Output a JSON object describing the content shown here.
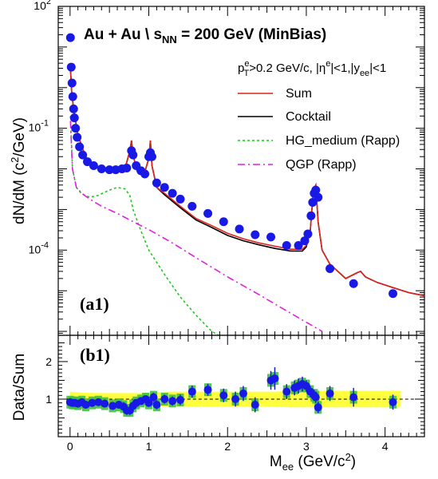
{
  "chart_data": [
    {
      "type": "line",
      "panel": "(a1)",
      "title": "Au + Au  \\ s_NN = 200 GeV (MinBias)",
      "title_parts": {
        "prefix": "Au + Au  \\ s",
        "sub": "NN",
        "suffix": " = 200 GeV (MinBias)"
      },
      "cuts": "p_T^e>0.2 GeV/c, |η^e|<1,|y_ee|<1",
      "cuts_parts": {
        "p": "p",
        "sup_e": "e",
        "sub_T": "T",
        "mid": ">0.2 GeV/c, |η",
        "sup_e2": "e",
        "mid2": "|<1,|y",
        "sub_ee": "ee",
        "end": "|<1"
      },
      "ylabel": "dN/dM (c²/GeV)",
      "ylabel_parts": {
        "a": "dN/dM (c",
        "sup": "2",
        "b": "/GeV)"
      },
      "yscale": "log",
      "ylim": [
        8e-07,
        100
      ],
      "xlim": [
        -0.15,
        4.5
      ],
      "y_ticks": [
        {
          "value": 100,
          "label": "10",
          "exp": "2"
        },
        {
          "value": 0.1,
          "label": "10",
          "exp": "-1"
        },
        {
          "value": 0.0001,
          "label": "10",
          "exp": "-4"
        }
      ],
      "legend_placement": "top-right",
      "series": [
        {
          "name": "Sum",
          "color": "#e0201b",
          "dash": "solid",
          "x": [
            0.005,
            0.02,
            0.05,
            0.1,
            0.15,
            0.2,
            0.3,
            0.4,
            0.5,
            0.6,
            0.7,
            0.76,
            0.78,
            0.8,
            0.85,
            0.9,
            0.95,
            1.0,
            1.02,
            1.04,
            1.1,
            1.2,
            1.4,
            1.6,
            1.8,
            2.0,
            2.2,
            2.4,
            2.6,
            2.8,
            2.95,
            3.0,
            3.05,
            3.09,
            3.12,
            3.15,
            3.2,
            3.3,
            3.5,
            3.65,
            3.69,
            3.75,
            3.9,
            4.1,
            4.3,
            4.5
          ],
          "y": [
            3.0,
            0.8,
            0.25,
            0.07,
            0.035,
            0.02,
            0.012,
            0.0095,
            0.0085,
            0.0088,
            0.0105,
            0.028,
            0.05,
            0.022,
            0.009,
            0.0075,
            0.0085,
            0.018,
            0.05,
            0.012,
            0.0035,
            0.0025,
            0.0012,
            0.0006,
            0.0004,
            0.00026,
            0.00019,
            0.00015,
            0.000125,
            0.000105,
            0.000105,
            0.00013,
            0.0003,
            0.003,
            0.004,
            0.0005,
            0.0001,
            4.5e-05,
            2e-05,
            2.8e-05,
            3e-05,
            2.2e-05,
            1.6e-05,
            1.2e-05,
            9e-06,
            7.5e-06
          ]
        },
        {
          "name": "Cocktail",
          "color": "#000000",
          "dash": "solid",
          "x": [
            0.005,
            0.02,
            0.05,
            0.1,
            0.15,
            0.2,
            0.3,
            0.4,
            0.5,
            0.6,
            0.7,
            0.76,
            0.78,
            0.8,
            0.85,
            0.9,
            0.95,
            1.0,
            1.02,
            1.04,
            1.1,
            1.2,
            1.4,
            1.6,
            1.8,
            2.0,
            2.2,
            2.4,
            2.6,
            2.8,
            2.95,
            3.0,
            3.05,
            3.09,
            3.12,
            3.15,
            3.2,
            3.3,
            3.5,
            3.65,
            3.69,
            3.75,
            3.9,
            4.1,
            4.3,
            4.5
          ],
          "y": [
            3.0,
            0.8,
            0.25,
            0.07,
            0.035,
            0.02,
            0.012,
            0.0095,
            0.0085,
            0.0088,
            0.0105,
            0.028,
            0.05,
            0.022,
            0.009,
            0.0075,
            0.0085,
            0.018,
            0.05,
            0.012,
            0.0035,
            0.0023,
            0.0011,
            0.00055,
            0.00036,
            0.00023,
            0.00017,
            0.000135,
            0.00011,
            9.5e-05,
            9.5e-05,
            0.00012,
            0.0003,
            0.003,
            0.004,
            0.0005,
            0.0001,
            4.5e-05,
            2e-05,
            2.8e-05,
            3e-05,
            2.2e-05,
            1.6e-05,
            1.2e-05,
            9e-06,
            7.5e-06
          ]
        },
        {
          "name": "HG_medium (Rapp)",
          "color": "#1ec81e",
          "dash": "3,3",
          "x": [
            0.005,
            0.03,
            0.08,
            0.15,
            0.25,
            0.35,
            0.5,
            0.6,
            0.7,
            0.76,
            0.8,
            0.9,
            1.0,
            1.2,
            1.4,
            1.6,
            1.8,
            2.0
          ],
          "y": [
            0.2,
            0.01,
            0.0035,
            0.0024,
            0.002,
            0.0022,
            0.003,
            0.0035,
            0.0032,
            0.0022,
            0.001,
            0.0003,
            0.0001,
            2.5e-05,
            7e-06,
            2.5e-06,
            1e-06,
            6e-07
          ]
        },
        {
          "name": "QGP (Rapp)",
          "color": "#e020e0",
          "dash": "9,4,2,4",
          "x": [
            0.005,
            0.03,
            0.08,
            0.15,
            0.25,
            0.4,
            0.6,
            0.8,
            1.0,
            1.3,
            1.6,
            2.0,
            2.4,
            2.8,
            3.2
          ],
          "y": [
            0.15,
            0.01,
            0.0035,
            0.0025,
            0.0018,
            0.0012,
            0.0008,
            0.0005,
            0.00032,
            0.00015,
            6.5e-05,
            2.2e-05,
            8e-06,
            2.8e-06,
            1e-06
          ]
        }
      ],
      "data_points": {
        "name": "data",
        "color": "#1919e6",
        "x": [
          0.005,
          0.015,
          0.025,
          0.035,
          0.045,
          0.055,
          0.07,
          0.09,
          0.12,
          0.16,
          0.22,
          0.3,
          0.4,
          0.5,
          0.58,
          0.66,
          0.72,
          0.78,
          0.8,
          0.84,
          0.9,
          0.95,
          1.0,
          1.02,
          1.04,
          1.1,
          1.2,
          1.3,
          1.4,
          1.55,
          1.75,
          1.95,
          2.15,
          2.35,
          2.55,
          2.75,
          2.9,
          2.98,
          3.02,
          3.06,
          3.08,
          3.1,
          3.12,
          3.15,
          3.3,
          3.6,
          4.1
        ],
        "y": [
          17,
          3.2,
          1.3,
          0.6,
          0.3,
          0.18,
          0.1,
          0.06,
          0.035,
          0.022,
          0.015,
          0.012,
          0.01,
          0.0095,
          0.0095,
          0.01,
          0.0105,
          0.028,
          0.022,
          0.012,
          0.009,
          0.0075,
          0.02,
          0.025,
          0.02,
          0.0045,
          0.0035,
          0.0025,
          0.0018,
          0.0012,
          0.0008,
          0.0005,
          0.00033,
          0.00024,
          0.00021,
          0.00013,
          0.00013,
          0.00017,
          0.00025,
          0.0007,
          0.0015,
          0.0025,
          0.003,
          0.002,
          3.5e-05,
          1.5e-05,
          8.5e-06
        ]
      }
    },
    {
      "type": "scatter",
      "panel": "(b1)",
      "ylabel": "Data/Sum",
      "xlabel": "M_ee (GeV/c²)",
      "xlabel_parts": {
        "a": "M",
        "sub": "ee",
        "b": " (GeV/c",
        "sup": "2",
        "c": ")"
      },
      "ylim": [
        0,
        2.7
      ],
      "xlim": [
        -0.15,
        4.5
      ],
      "x_ticks": [
        0,
        1,
        2,
        3,
        4
      ],
      "x_tick_labels": [
        "0",
        "1",
        "2",
        "3",
        "4"
      ],
      "y_ticks": [
        1,
        2
      ],
      "y_tick_labels": [
        "1",
        "2"
      ],
      "reference_line": 1.0,
      "band": {
        "color": "#ffff40",
        "x": [
          0,
          0.1,
          0.2,
          0.4,
          0.6,
          0.8,
          1.0,
          1.2,
          1.4,
          1.6,
          1.8,
          2.0,
          2.2,
          2.4,
          2.6,
          2.8,
          3.0,
          3.2,
          3.4,
          3.6,
          3.8,
          4.0,
          4.2
        ],
        "low": [
          0.8,
          0.82,
          0.83,
          0.84,
          0.84,
          0.84,
          0.84,
          0.8,
          0.8,
          0.8,
          0.8,
          0.8,
          0.8,
          0.8,
          0.8,
          0.78,
          0.78,
          0.78,
          0.78,
          0.78,
          0.78,
          0.78,
          0.78
        ],
        "high": [
          1.2,
          1.18,
          1.17,
          1.16,
          1.16,
          1.16,
          1.16,
          1.2,
          1.2,
          1.2,
          1.2,
          1.2,
          1.2,
          1.2,
          1.2,
          1.22,
          1.22,
          1.22,
          1.22,
          1.22,
          1.22,
          1.22,
          1.22
        ]
      },
      "points": {
        "color": "#1919e6",
        "syst_color": "#40c040",
        "x": [
          0.0,
          0.03,
          0.06,
          0.1,
          0.15,
          0.2,
          0.28,
          0.36,
          0.44,
          0.54,
          0.62,
          0.68,
          0.72,
          0.76,
          0.8,
          0.84,
          0.9,
          0.96,
          1.0,
          1.06,
          1.1,
          1.2,
          1.3,
          1.4,
          1.55,
          1.75,
          1.95,
          2.1,
          2.2,
          2.35,
          2.55,
          2.6,
          2.75,
          2.85,
          2.9,
          2.95,
          3.0,
          3.05,
          3.1,
          3.12,
          3.15,
          3.3,
          3.6,
          4.1
        ],
        "y": [
          0.92,
          0.9,
          0.9,
          0.88,
          0.92,
          0.85,
          0.9,
          0.92,
          0.88,
          0.82,
          0.85,
          0.8,
          0.7,
          0.7,
          0.82,
          0.9,
          0.95,
          1.0,
          0.9,
          1.05,
          0.85,
          1.0,
          0.95,
          0.98,
          1.2,
          1.25,
          1.1,
          1.0,
          1.15,
          0.85,
          1.5,
          1.55,
          1.2,
          1.3,
          1.35,
          1.4,
          1.35,
          1.2,
          1.1,
          1.05,
          0.78,
          1.15,
          1.05,
          0.92
        ],
        "err": [
          0.08,
          0.08,
          0.08,
          0.08,
          0.08,
          0.08,
          0.1,
          0.1,
          0.1,
          0.1,
          0.1,
          0.12,
          0.12,
          0.12,
          0.1,
          0.1,
          0.1,
          0.1,
          0.1,
          0.12,
          0.12,
          0.12,
          0.12,
          0.14,
          0.16,
          0.16,
          0.18,
          0.2,
          0.2,
          0.2,
          0.25,
          0.3,
          0.2,
          0.2,
          0.2,
          0.2,
          0.15,
          0.15,
          0.15,
          0.15,
          0.15,
          0.2,
          0.25,
          0.2
        ]
      }
    }
  ]
}
